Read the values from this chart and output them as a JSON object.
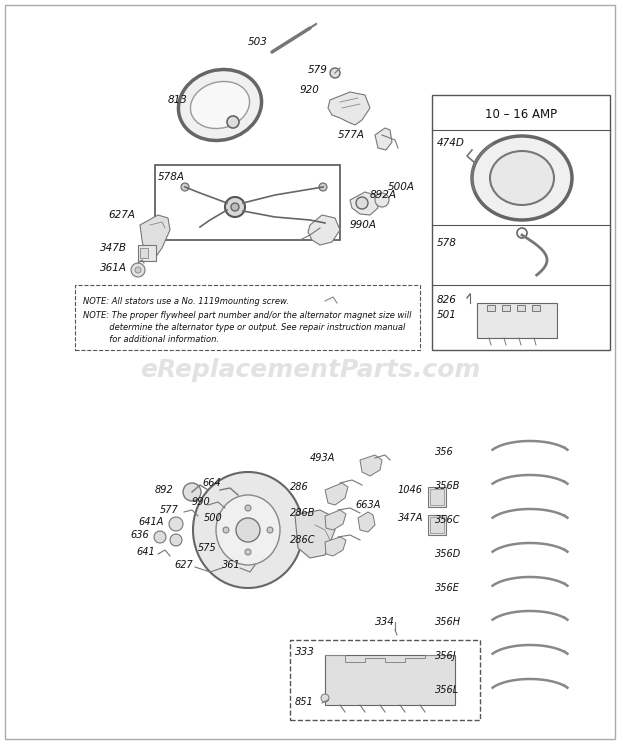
{
  "fig_width": 6.2,
  "fig_height": 7.44,
  "dpi": 100,
  "bg": "#ffffff",
  "watermark": "eReplacementParts.com",
  "watermark_color": "#d0d0d0",
  "note_line1": "NOTE: All stators use a No. 1119mounting screw.",
  "note_line2": "NOTE: The proper flywheel part number and/or the alternator magnet size will",
  "note_line3": "          determine the alternator type or output. See repair instruction manual",
  "note_line4": "          for additional information.",
  "amp_title": "10 – 16 AMP",
  "label_color": "#111111",
  "line_color": "#888888",
  "part_fontsize": 7.0
}
